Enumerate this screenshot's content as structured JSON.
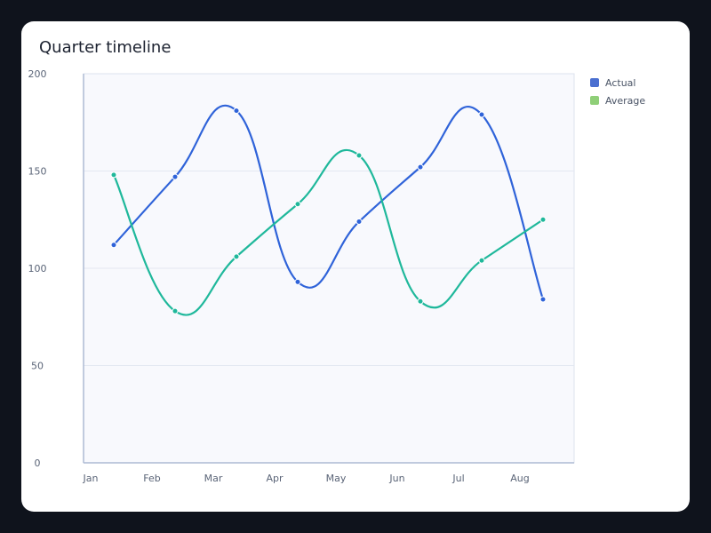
{
  "chart_data": {
    "type": "line",
    "title": "Quarter timeline",
    "categories": [
      "Jan",
      "Feb",
      "Mar",
      "Apr",
      "May",
      "Jun",
      "Jul",
      "Aug"
    ],
    "series": [
      {
        "name": "Actual",
        "values": [
          112,
          147,
          181,
          93,
          124,
          152,
          179,
          84
        ],
        "color": "#2f63d9",
        "swatch": "#4a6fd0"
      },
      {
        "name": "Average",
        "values": [
          148,
          78,
          106,
          133,
          158,
          83,
          104,
          125
        ],
        "color": "#1fb89b",
        "swatch": "#8fcf78"
      }
    ],
    "ylim": [
      0,
      200
    ],
    "yticks": [
      0,
      50,
      100,
      150,
      200
    ],
    "grid": true,
    "legend_position": "top-right",
    "xlabel": "",
    "ylabel": ""
  }
}
